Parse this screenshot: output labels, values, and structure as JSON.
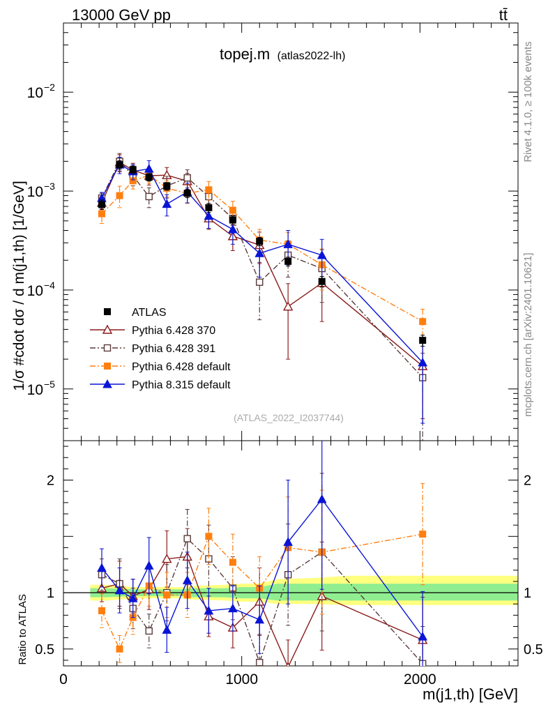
{
  "header": {
    "left": "13000 GeV pp",
    "right": "tt̄"
  },
  "side_labels": {
    "upper": "Rivet 4.1.0, ≥ 100k events",
    "lower": "mcplots.cern.ch [arXiv:2401.10621]"
  },
  "chart_data": {
    "type": "scatter",
    "title": "topej.m",
    "subtitle": "(atlas2022-lh)",
    "analysis_id": "(ATLAS_2022_I2037744)",
    "xlabel": "m(j1,th) [GeV]",
    "ylabel": "1/σ #cdot dσ / d m(j1,th) [1/GeV]",
    "ratio_ylabel": "Ratio to ATLAS",
    "xlim": [
      0,
      2550
    ],
    "ylim": [
      3e-06,
      0.05
    ],
    "ratio_ylim": [
      0.35,
      2.35
    ],
    "yscale": "log",
    "x_ticks": [
      {
        "value": 0,
        "label": "0"
      },
      {
        "value": 1000,
        "label": "1000"
      },
      {
        "value": 2000,
        "label": "2000"
      }
    ],
    "y_ticks": [
      {
        "value": 1e-05,
        "label": "10",
        "exp": "−5"
      },
      {
        "value": 0.0001,
        "label": "10",
        "exp": "−4"
      },
      {
        "value": 0.001,
        "label": "10",
        "exp": "−3"
      },
      {
        "value": 0.01,
        "label": "10",
        "exp": "−2"
      }
    ],
    "ratio_ticks": [
      {
        "value": 0.5,
        "label": "0.5"
      },
      {
        "value": 1,
        "label": "1"
      },
      {
        "value": 2,
        "label": "2"
      }
    ],
    "band": {
      "x": [
        150,
        240,
        400,
        500,
        580,
        660,
        720,
        900,
        1000,
        1100,
        1200,
        1400,
        1600,
        1800,
        2000,
        2200,
        2550
      ],
      "stat_lo": [
        0.96,
        0.96,
        0.97,
        0.97,
        0.97,
        0.97,
        0.96,
        0.96,
        0.95,
        0.95,
        0.93,
        0.93,
        0.93,
        0.93,
        0.93,
        0.93,
        0.93
      ],
      "stat_hi": [
        1.04,
        1.04,
        1.03,
        1.03,
        1.03,
        1.03,
        1.04,
        1.04,
        1.05,
        1.05,
        1.08,
        1.08,
        1.08,
        1.08,
        1.08,
        1.08,
        1.08
      ],
      "total_lo": [
        0.93,
        0.93,
        0.95,
        0.95,
        0.95,
        0.95,
        0.94,
        0.93,
        0.92,
        0.92,
        0.9,
        0.9,
        0.89,
        0.89,
        0.89,
        0.89,
        0.89
      ],
      "total_hi": [
        1.07,
        1.07,
        1.05,
        1.05,
        1.05,
        1.05,
        1.06,
        1.07,
        1.08,
        1.08,
        1.12,
        1.13,
        1.15,
        1.15,
        1.15,
        1.15,
        1.15
      ]
    },
    "series": [
      {
        "name": "ATLAS",
        "color": "#000000",
        "marker": "square-filled",
        "line": "none",
        "x": [
          215,
          315,
          390,
          480,
          580,
          695,
          815,
          950,
          1100,
          1260,
          1450,
          2015
        ],
        "y": [
          0.00073,
          0.00185,
          0.00165,
          0.00138,
          0.00112,
          0.00095,
          0.00068,
          0.00051,
          0.00031,
          0.000195,
          0.000122,
          3.1e-05
        ],
        "err_lo": [
          8e-05,
          0.00018,
          0.00015,
          0.00012,
          0.0001,
          9e-05,
          7e-05,
          5e-05,
          3e-05,
          2e-05,
          1.5e-05,
          4e-06
        ],
        "err_hi": [
          8e-05,
          0.00018,
          0.00015,
          0.00012,
          0.0001,
          9e-05,
          7e-05,
          5e-05,
          3e-05,
          2e-05,
          1.5e-05,
          4e-06
        ],
        "ratio": [
          1,
          1,
          1,
          1,
          1,
          1,
          1,
          1,
          1,
          1,
          1,
          1
        ]
      },
      {
        "name": "Pythia 6.428 370",
        "color": "#8b1a1a",
        "marker": "triangle-open",
        "line": "solid",
        "x": [
          215,
          315,
          390,
          480,
          580,
          695,
          815,
          950,
          1100,
          1260,
          1450,
          2015
        ],
        "y": [
          0.00076,
          0.00195,
          0.00163,
          0.00143,
          0.00145,
          0.00126,
          0.00053,
          0.00035,
          0.000285,
          6.8e-05,
          0.000118,
          1.7e-05
        ],
        "err_lo": [
          0.0001,
          0.00038,
          0.00028,
          0.00028,
          0.00028,
          0.00025,
          0.00012,
          0.0001,
          0.0001,
          4.8e-05,
          7e-05,
          1.2e-05
        ],
        "err_hi": [
          0.0001,
          0.00038,
          0.00028,
          0.00028,
          0.00028,
          0.00025,
          0.00012,
          0.0001,
          0.0001,
          4.8e-05,
          7e-05,
          1.2e-05
        ],
        "ratio": [
          1.04,
          1.08,
          0.97,
          1.03,
          1.3,
          1.32,
          0.79,
          0.69,
          0.92,
          0.34,
          0.97,
          0.58
        ],
        "ratio_err": [
          0.12,
          0.2,
          0.15,
          0.18,
          0.25,
          0.25,
          0.18,
          0.18,
          0.3,
          0.24,
          0.48,
          0.38
        ]
      },
      {
        "name": "Pythia 6.428 391",
        "color": "#5a3a3a",
        "marker": "square-open",
        "line": "dashdot",
        "x": [
          215,
          315,
          390,
          480,
          580,
          695,
          815,
          950,
          1100,
          1260,
          1450,
          2015
        ],
        "y": [
          0.00085,
          0.002,
          0.00143,
          0.00088,
          0.00113,
          0.00136,
          0.00088,
          0.00053,
          0.00012,
          0.000225,
          0.000165,
          1.3e-05
        ],
        "err_lo": [
          0.0001,
          0.0004,
          0.0003,
          0.0002,
          0.00028,
          0.00028,
          0.0002,
          0.00013,
          7e-05,
          9e-05,
          9e-05,
          1e-05
        ],
        "err_hi": [
          0.0001,
          0.0004,
          0.0003,
          0.0002,
          0.00028,
          0.00028,
          0.0002,
          0.00013,
          7e-05,
          9e-05,
          9e-05,
          1e-05
        ],
        "ratio": [
          1.16,
          1.08,
          0.86,
          0.66,
          1.0,
          1.48,
          1.3,
          1.04,
          0.38,
          1.16,
          1.36,
          0.37
        ],
        "ratio_err": [
          0.14,
          0.22,
          0.18,
          0.15,
          0.25,
          0.26,
          0.3,
          0.28,
          0.25,
          0.45,
          0.7,
          0.33
        ]
      },
      {
        "name": "Pythia 6.428 default",
        "color": "#ff7f0e",
        "marker": "square-filled",
        "line": "dashdot",
        "x": [
          215,
          315,
          390,
          480,
          580,
          695,
          815,
          950,
          1100,
          1260,
          1450,
          2015
        ],
        "y": [
          0.00059,
          0.0009,
          0.00127,
          0.00145,
          0.00107,
          0.00095,
          0.00103,
          0.00064,
          0.00032,
          0.00029,
          0.00018,
          4.8e-05
        ],
        "err_lo": [
          0.00012,
          0.00022,
          0.00022,
          0.00025,
          0.0002,
          0.0002,
          0.00022,
          0.00015,
          9e-05,
          9e-05,
          8e-05,
          1.6e-05
        ],
        "err_hi": [
          0.00012,
          0.00022,
          0.00022,
          0.00025,
          0.0002,
          0.0002,
          0.00022,
          0.00015,
          9e-05,
          9e-05,
          8e-05,
          1.6e-05
        ],
        "ratio": [
          0.84,
          0.5,
          0.78,
          1.06,
          0.98,
          0.98,
          1.5,
          1.27,
          1.04,
          1.4,
          1.36,
          1.52
        ],
        "ratio_err": [
          0.15,
          0.12,
          0.15,
          0.18,
          0.2,
          0.2,
          0.25,
          0.25,
          0.28,
          0.45,
          0.55,
          0.45
        ]
      },
      {
        "name": "Pythia 8.315 default",
        "color": "#0a14d6",
        "marker": "triangle-filled",
        "line": "solid",
        "x": [
          215,
          315,
          390,
          480,
          580,
          695,
          815,
          950,
          1100,
          1260,
          1450,
          2015
        ],
        "y": [
          0.00085,
          0.00185,
          0.00158,
          0.00168,
          0.00074,
          0.00098,
          0.00056,
          0.00041,
          0.000235,
          0.00029,
          0.000225,
          1.85e-05
        ],
        "err_lo": [
          0.00012,
          0.00035,
          0.00028,
          0.00035,
          0.00018,
          0.00022,
          0.00014,
          0.00012,
          0.0001,
          0.00011,
          0.0001,
          1.4e-05
        ],
        "err_hi": [
          0.00012,
          0.00035,
          0.00028,
          0.00035,
          0.00018,
          0.00022,
          0.00014,
          0.00012,
          0.0001,
          0.00011,
          0.0001,
          1.4e-05
        ],
        "ratio": [
          1.22,
          1.02,
          0.95,
          1.24,
          0.67,
          1.11,
          0.84,
          0.86,
          0.76,
          1.45,
          1.83,
          0.61
        ],
        "ratio_err": [
          0.17,
          0.2,
          0.17,
          0.25,
          0.2,
          0.25,
          0.2,
          0.2,
          0.3,
          0.55,
          0.8,
          0.4
        ]
      }
    ]
  }
}
